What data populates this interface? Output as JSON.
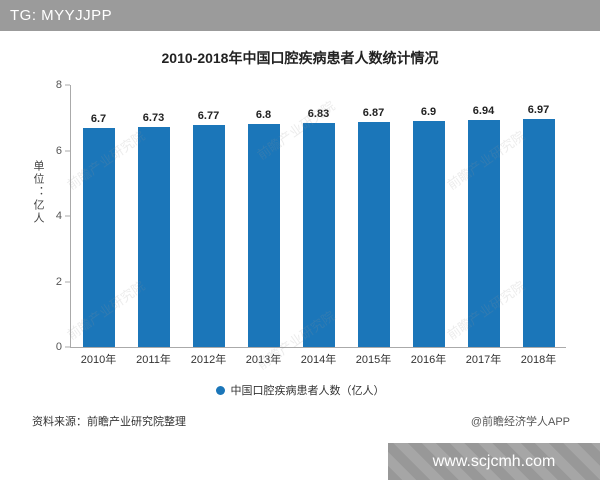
{
  "header": {
    "tag_label": "TG: MYYJJPP"
  },
  "chart_data": {
    "type": "bar",
    "title": "2010-2018年中国口腔疾病患者人数统计情况",
    "unit_label": "单位：亿人",
    "categories": [
      "2010年",
      "2011年",
      "2012年",
      "2013年",
      "2014年",
      "2015年",
      "2016年",
      "2017年",
      "2018年"
    ],
    "values": [
      6.7,
      6.73,
      6.77,
      6.8,
      6.83,
      6.87,
      6.9,
      6.94,
      6.97
    ],
    "ylim": [
      0,
      8
    ],
    "yticks": [
      0,
      2,
      4,
      6,
      8
    ],
    "legend": "中国口腔疾病患者人数（亿人）",
    "bar_color": "#1b76b9",
    "grid": false,
    "legend_position": "bottom"
  },
  "footer": {
    "source": "资料来源：前瞻产业研究院整理",
    "credit": "@前瞻经济学人APP",
    "site": "www.scjcmh.com"
  },
  "watermark": "前瞻产业研究院"
}
